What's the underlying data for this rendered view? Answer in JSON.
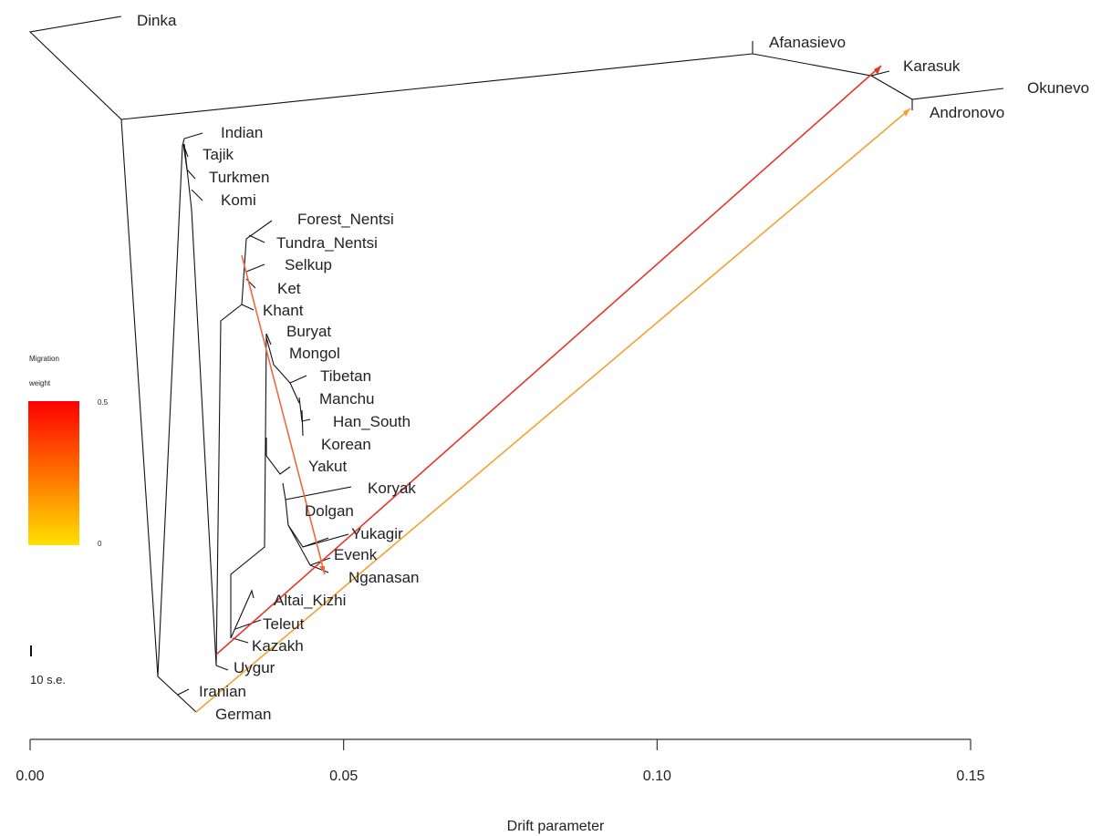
{
  "chart_data": {
    "type": "tree",
    "xlabel": "Drift parameter",
    "xlim": [
      0.0,
      0.15
    ],
    "xticks": [
      0.0,
      0.05,
      0.1,
      0.15
    ],
    "xtick_labels": [
      "0.00",
      "0.05",
      "0.10",
      "0.15"
    ],
    "tips": [
      "Dinka",
      "Afanasievo",
      "Karasuk",
      "Okunevo",
      "Andronovo",
      "Indian",
      "Tajik",
      "Turkmen",
      "Komi",
      "Forest_Nentsi",
      "Tundra_Nentsi",
      "Selkup",
      "Ket",
      "Khant",
      "Buryat",
      "Mongol",
      "Tibetan",
      "Manchu",
      "Han_South",
      "Korean",
      "Yakut",
      "Koryak",
      "Dolgan",
      "Yukagir",
      "Evenk",
      "Nganasan",
      "Altai_Kizhi",
      "Teleut",
      "Kazakh",
      "Uygur",
      "Iranian",
      "German"
    ],
    "migration_edges": [
      {
        "weight": 0.45
      },
      {
        "weight": 0.25
      },
      {
        "weight": 0.35
      }
    ],
    "legend": {
      "title_line1": "Migration",
      "title_line2": "weight",
      "max_label": "0.5",
      "min_label": "0",
      "color_high": "#ff0000",
      "color_low": "#ffe000"
    },
    "scale_bar_label": "10 s.e."
  }
}
